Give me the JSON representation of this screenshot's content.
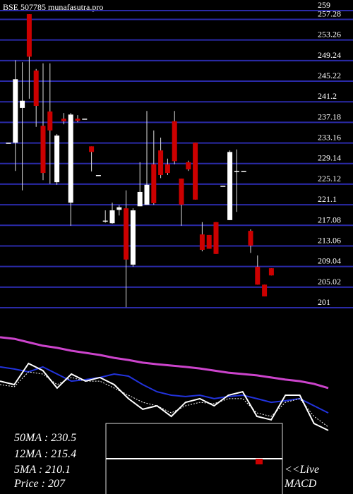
{
  "chart_data": [
    {
      "type": "candlestick",
      "title": "BSE 507785 munafasutra.pro",
      "ylim": [
        201,
        259
      ],
      "yticks": [
        259,
        257.28,
        253.26,
        249.24,
        245.22,
        241.2,
        237.18,
        233.16,
        229.14,
        225.12,
        221.1,
        217.08,
        213.06,
        209.04,
        205.02,
        201
      ],
      "grid": true,
      "grid_color": "#2a2aa8",
      "up_color": "#ffffff",
      "down_color": "#cc0000",
      "open": [
        233.2,
        233.2,
        240,
        258.3,
        247.3,
        236.5,
        239.3,
        225.5,
        237.9,
        221.5,
        237.9,
        237.9,
        232.5,
        226.9,
        218,
        217.5,
        220.1,
        220.4,
        209.4,
        220.8,
        221.1,
        229,
        231.7,
        229,
        237.4,
        226.2,
        229.4,
        233.2,
        215.3,
        215.2,
        217.7,
        224.8,
        218.1,
        227.7,
        227.7,
        216,
        209,
        205.5,
        208.7
      ],
      "high": [
        233.2,
        249.3,
        248.9,
        258.3,
        247.6,
        248.7,
        248.7,
        234.9,
        239,
        239,
        238.6,
        237.9,
        232.5,
        226.9,
        220,
        221.5,
        221,
        223.9,
        220.4,
        229.4,
        239.4,
        235.6,
        234.2,
        230.1,
        239.4,
        226.2,
        229.7,
        233.2,
        217.7,
        215.2,
        217.7,
        224.8,
        231.7,
        231.9,
        227.7,
        216.3,
        211.2,
        205.5,
        208.7
      ],
      "low": [
        233.2,
        227.7,
        223.9,
        241.8,
        236.3,
        225.9,
        225.2,
        225,
        236.8,
        217,
        237.2,
        237.9,
        227.6,
        226.9,
        217.6,
        217.4,
        219,
        201.1,
        209,
        220.8,
        221.1,
        221.1,
        226.3,
        226.9,
        229,
        217,
        227.7,
        222.1,
        212,
        212.5,
        211.5,
        224.8,
        218.1,
        219.7,
        227.7,
        211.7,
        205.5,
        203.2,
        207.3
      ],
      "close": [
        233.2,
        245.6,
        241.4,
        250,
        240.4,
        227.3,
        235.6,
        234.6,
        237.4,
        238.7,
        237.5,
        237.9,
        231.4,
        226.9,
        218,
        220,
        220.6,
        210.4,
        220,
        223.6,
        225,
        221.4,
        226.9,
        227.3,
        229.6,
        221.1,
        228,
        222.1,
        212.3,
        212.5,
        211.5,
        224.8,
        231.4,
        227.7,
        227.7,
        213.1,
        205.5,
        203.2,
        207.3
      ]
    },
    {
      "type": "line",
      "ylim": [
        200,
        240
      ],
      "series": [
        {
          "name": "50MA : 230.5",
          "color": "#cc44cc",
          "width": 3,
          "values": [
            237.9,
            237.3,
            236,
            234.7,
            233.9,
            232.8,
            232,
            231.2,
            230.1,
            229.3,
            228.3,
            227.7,
            227.2,
            226.7,
            226.1,
            225.3,
            224.5,
            224,
            223.5,
            222.7,
            221.9,
            221.3,
            220.3,
            218.7
          ]
        },
        {
          "name": "12MA : 215.4",
          "color": "#2233dd",
          "width": 2,
          "values": [
            226.7,
            225.9,
            224.8,
            226.7,
            224,
            221.3,
            221.9,
            222.7,
            224,
            223.2,
            220,
            217.3,
            216,
            215.5,
            216,
            214.7,
            215.5,
            216,
            214.7,
            213.3,
            213.9,
            214.7,
            212,
            209.3
          ]
        },
        {
          "name": "5MA : 210.1",
          "color": "#ffffff",
          "width": 1,
          "dashed": true,
          "values": [
            220,
            219.2,
            224.8,
            224,
            220,
            222.7,
            221.3,
            221.3,
            218.7,
            216,
            213.3,
            212,
            209.3,
            212,
            213.3,
            212.8,
            214.7,
            214.7,
            209.3,
            208,
            213.3,
            214.7,
            208,
            204
          ]
        },
        {
          "name": "Price   : 207",
          "color": "#ffffff",
          "width": 2,
          "values": [
            221.3,
            220,
            228,
            225.3,
            218.7,
            224,
            221.3,
            222.7,
            220,
            214.7,
            210.7,
            212,
            208,
            213.3,
            214.7,
            212,
            216,
            217.3,
            208,
            206.7,
            216,
            216,
            205.3,
            202.7
          ]
        }
      ]
    }
  ],
  "macd": {
    "labels": [
      "<<Live",
      "MACD"
    ]
  }
}
